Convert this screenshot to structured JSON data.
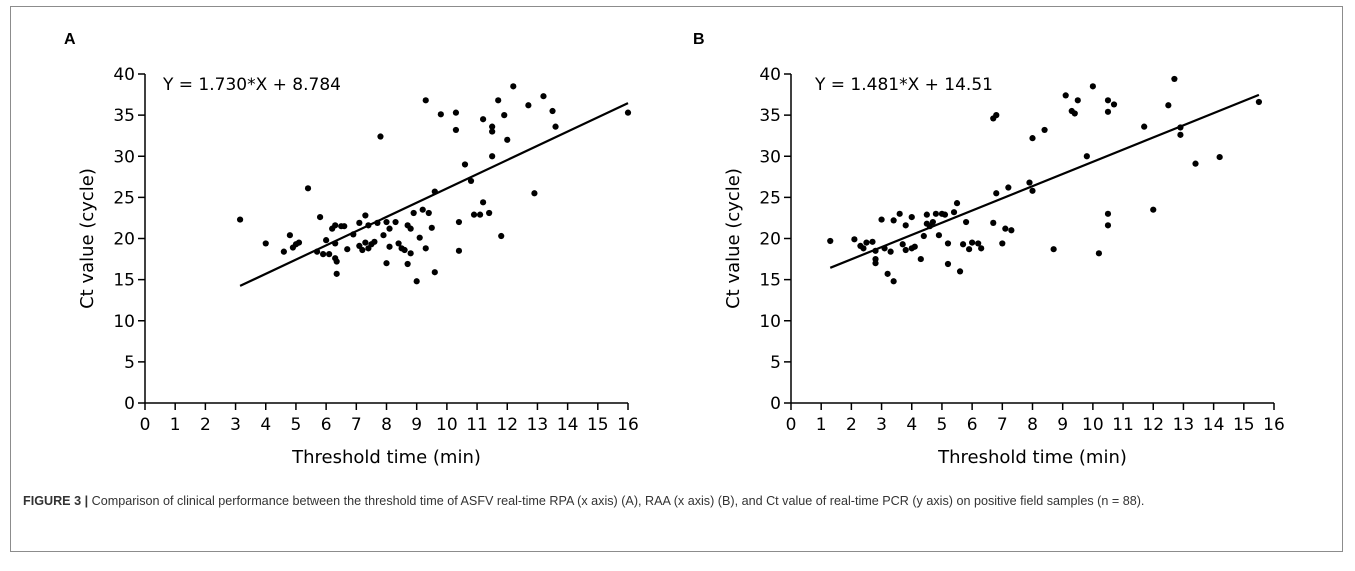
{
  "caption": {
    "figure_label": "FIGURE 3 |",
    "text": " Comparison of clinical performance between the threshold time of ASFV real-time RPA (x axis) (A), RAA (x axis) (B), and Ct value of real-time PCR (y axis) on positive field samples (n = 88)."
  },
  "chart_data": [
    {
      "panel": "A",
      "type": "scatter",
      "equation": "Y = 1.730*X + 8.784",
      "fit": {
        "slope": 1.73,
        "intercept": 8.784,
        "x_start": 3.15,
        "x_end": 16.0
      },
      "xlabel": "Threshold time (min)",
      "ylabel": "Ct value (cycle)",
      "xlim": [
        0,
        16
      ],
      "ylim": [
        0,
        40
      ],
      "xticks": [
        0,
        1,
        2,
        3,
        4,
        5,
        6,
        7,
        8,
        9,
        10,
        11,
        12,
        13,
        14,
        15,
        16
      ],
      "yticks": [
        0,
        5,
        10,
        15,
        20,
        25,
        30,
        35,
        40
      ],
      "grid": false,
      "points": [
        [
          3.15,
          22.3
        ],
        [
          4.0,
          19.4
        ],
        [
          4.6,
          18.4
        ],
        [
          4.8,
          20.4
        ],
        [
          4.9,
          18.9
        ],
        [
          5.0,
          19.3
        ],
        [
          5.1,
          19.5
        ],
        [
          5.4,
          26.1
        ],
        [
          5.7,
          18.4
        ],
        [
          5.8,
          22.6
        ],
        [
          5.9,
          18.1
        ],
        [
          6.0,
          19.8
        ],
        [
          6.1,
          18.1
        ],
        [
          6.2,
          21.2
        ],
        [
          6.3,
          21.6
        ],
        [
          6.3,
          19.4
        ],
        [
          6.3,
          17.6
        ],
        [
          6.35,
          17.2
        ],
        [
          6.35,
          15.7
        ],
        [
          6.5,
          21.5
        ],
        [
          6.6,
          21.5
        ],
        [
          6.7,
          18.7
        ],
        [
          6.9,
          20.5
        ],
        [
          7.1,
          19.1
        ],
        [
          7.1,
          21.9
        ],
        [
          7.2,
          18.6
        ],
        [
          7.3,
          22.8
        ],
        [
          7.3,
          19.5
        ],
        [
          7.4,
          18.8
        ],
        [
          7.4,
          21.6
        ],
        [
          7.5,
          19.3
        ],
        [
          7.6,
          19.6
        ],
        [
          7.7,
          21.9
        ],
        [
          7.8,
          32.4
        ],
        [
          7.9,
          20.4
        ],
        [
          8.0,
          22.0
        ],
        [
          8.0,
          17.0
        ],
        [
          8.1,
          21.2
        ],
        [
          8.1,
          19.0
        ],
        [
          8.3,
          22.0
        ],
        [
          8.4,
          19.4
        ],
        [
          8.5,
          18.8
        ],
        [
          8.6,
          18.6
        ],
        [
          8.7,
          16.9
        ],
        [
          8.7,
          21.6
        ],
        [
          8.8,
          21.2
        ],
        [
          8.8,
          18.2
        ],
        [
          8.9,
          23.1
        ],
        [
          9.0,
          14.8
        ],
        [
          9.1,
          20.1
        ],
        [
          9.2,
          23.5
        ],
        [
          9.3,
          18.8
        ],
        [
          9.3,
          36.8
        ],
        [
          9.4,
          23.1
        ],
        [
          9.5,
          21.3
        ],
        [
          9.6,
          25.7
        ],
        [
          9.6,
          15.9
        ],
        [
          9.8,
          35.1
        ],
        [
          10.3,
          33.2
        ],
        [
          10.3,
          35.3
        ],
        [
          10.4,
          18.5
        ],
        [
          10.4,
          22.0
        ],
        [
          10.6,
          29.0
        ],
        [
          10.8,
          27.0
        ],
        [
          10.9,
          22.9
        ],
        [
          11.1,
          22.9
        ],
        [
          11.2,
          34.5
        ],
        [
          11.2,
          24.4
        ],
        [
          11.4,
          23.1
        ],
        [
          11.5,
          30.0
        ],
        [
          11.5,
          33.6
        ],
        [
          11.5,
          33.0
        ],
        [
          11.7,
          36.8
        ],
        [
          11.8,
          20.3
        ],
        [
          11.9,
          35.0
        ],
        [
          12.0,
          32.0
        ],
        [
          12.2,
          38.5
        ],
        [
          12.7,
          36.2
        ],
        [
          12.9,
          25.5
        ],
        [
          13.2,
          37.3
        ],
        [
          13.5,
          35.5
        ],
        [
          13.6,
          33.6
        ],
        [
          16.0,
          35.3
        ]
      ]
    },
    {
      "panel": "B",
      "type": "scatter",
      "equation": "Y = 1.481*X + 14.51",
      "fit": {
        "slope": 1.481,
        "intercept": 14.51,
        "x_start": 1.3,
        "x_end": 15.5
      },
      "xlabel": "Threshold time (min)",
      "ylabel": "Ct value (cycle)",
      "xlim": [
        0,
        16
      ],
      "ylim": [
        0,
        40
      ],
      "xticks": [
        0,
        1,
        2,
        3,
        4,
        5,
        6,
        7,
        8,
        9,
        10,
        11,
        12,
        13,
        14,
        15,
        16
      ],
      "yticks": [
        0,
        5,
        10,
        15,
        20,
        25,
        30,
        35,
        40
      ],
      "grid": false,
      "points": [
        [
          1.3,
          19.7
        ],
        [
          2.1,
          19.9
        ],
        [
          2.3,
          19.1
        ],
        [
          2.4,
          18.8
        ],
        [
          2.5,
          19.5
        ],
        [
          2.7,
          19.6
        ],
        [
          2.8,
          18.5
        ],
        [
          2.8,
          17.0
        ],
        [
          2.8,
          17.5
        ],
        [
          3.0,
          22.3
        ],
        [
          3.1,
          18.8
        ],
        [
          3.2,
          15.7
        ],
        [
          3.3,
          18.4
        ],
        [
          3.4,
          14.8
        ],
        [
          3.4,
          22.2
        ],
        [
          3.6,
          23.0
        ],
        [
          3.7,
          19.3
        ],
        [
          3.8,
          21.6
        ],
        [
          3.8,
          18.6
        ],
        [
          4.0,
          22.6
        ],
        [
          4.0,
          18.8
        ],
        [
          4.1,
          19.0
        ],
        [
          4.3,
          17.5
        ],
        [
          4.4,
          20.3
        ],
        [
          4.5,
          22.9
        ],
        [
          4.5,
          21.8
        ],
        [
          4.6,
          21.5
        ],
        [
          4.7,
          22.0
        ],
        [
          4.8,
          23.0
        ],
        [
          4.9,
          20.4
        ],
        [
          5.0,
          23.0
        ],
        [
          5.1,
          22.9
        ],
        [
          5.2,
          19.4
        ],
        [
          5.2,
          16.9
        ],
        [
          5.4,
          23.2
        ],
        [
          5.5,
          24.3
        ],
        [
          5.6,
          16.0
        ],
        [
          5.7,
          19.3
        ],
        [
          5.8,
          22.0
        ],
        [
          5.9,
          18.7
        ],
        [
          6.0,
          19.5
        ],
        [
          6.2,
          19.4
        ],
        [
          6.3,
          18.8
        ],
        [
          6.7,
          34.6
        ],
        [
          6.7,
          21.9
        ],
        [
          6.8,
          35.0
        ],
        [
          6.8,
          25.5
        ],
        [
          7.0,
          19.4
        ],
        [
          7.1,
          21.2
        ],
        [
          7.2,
          26.2
        ],
        [
          7.3,
          21.0
        ],
        [
          7.9,
          26.8
        ],
        [
          8.0,
          25.8
        ],
        [
          8.0,
          32.2
        ],
        [
          8.4,
          33.2
        ],
        [
          8.7,
          18.7
        ],
        [
          9.1,
          37.4
        ],
        [
          9.3,
          35.5
        ],
        [
          9.4,
          35.2
        ],
        [
          9.5,
          36.8
        ],
        [
          9.8,
          30.0
        ],
        [
          10.0,
          38.5
        ],
        [
          10.2,
          18.2
        ],
        [
          10.5,
          35.4
        ],
        [
          10.5,
          36.8
        ],
        [
          10.5,
          23.0
        ],
        [
          10.5,
          21.6
        ],
        [
          10.7,
          36.3
        ],
        [
          11.7,
          33.6
        ],
        [
          12.0,
          23.5
        ],
        [
          12.5,
          36.2
        ],
        [
          12.7,
          39.4
        ],
        [
          12.9,
          33.5
        ],
        [
          12.9,
          32.6
        ],
        [
          13.4,
          29.1
        ],
        [
          14.2,
          29.9
        ],
        [
          15.5,
          36.6
        ]
      ]
    }
  ]
}
